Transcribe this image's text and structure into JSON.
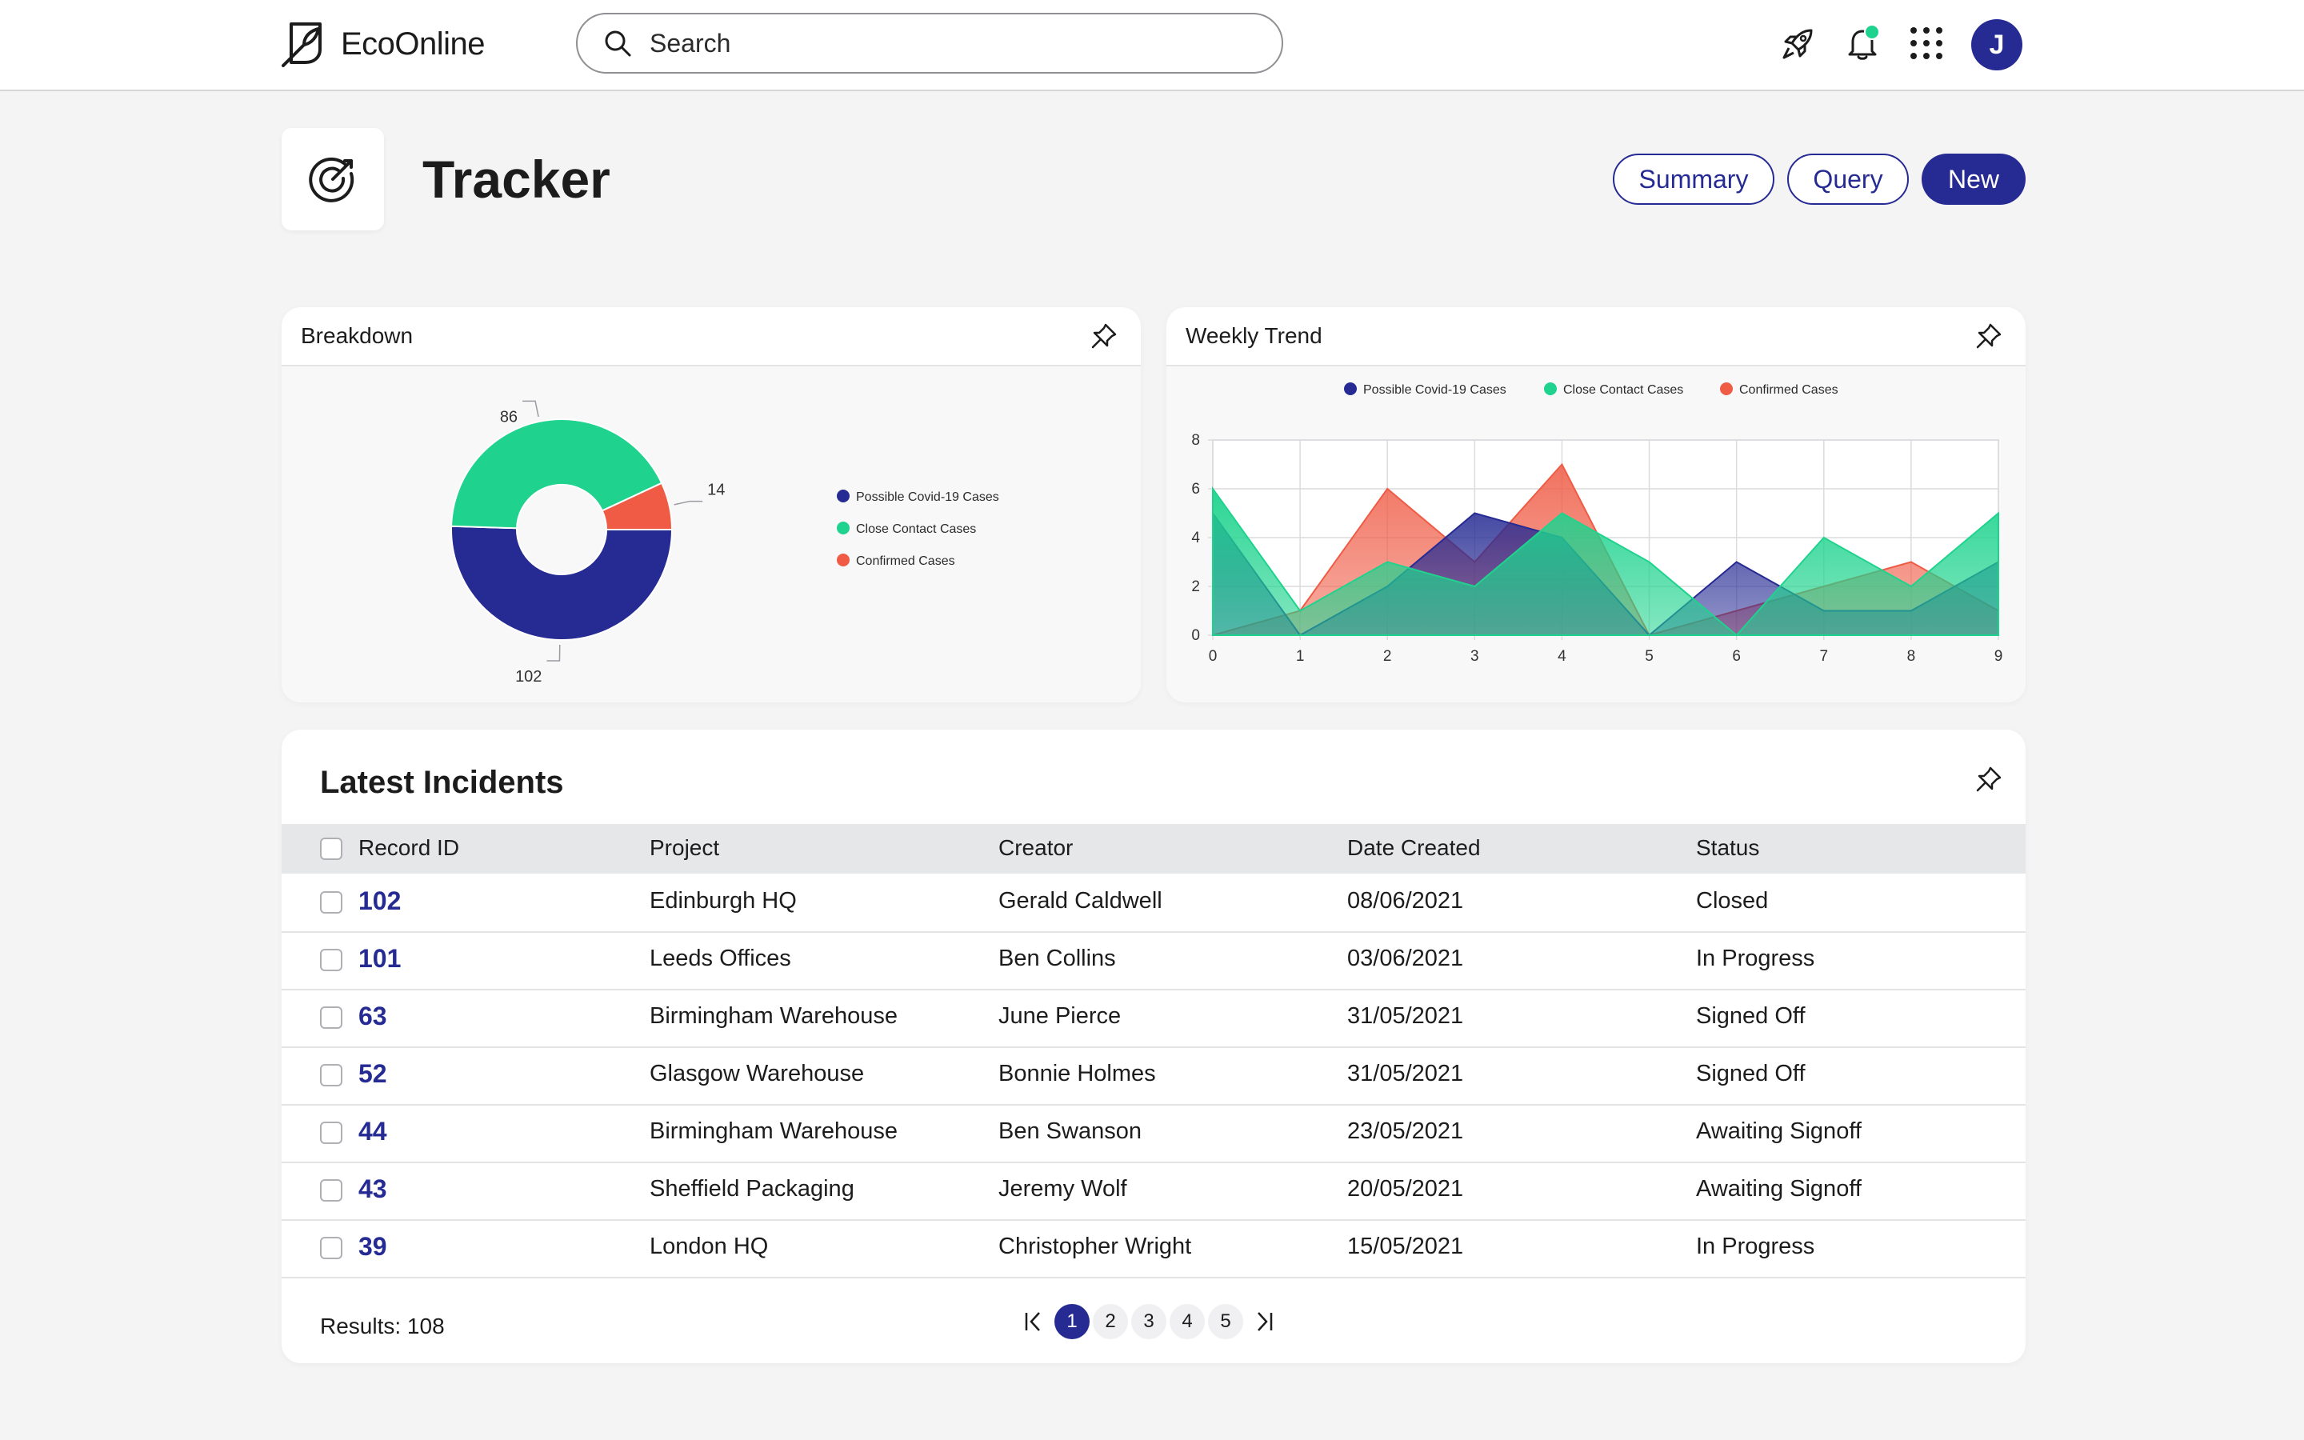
{
  "app": {
    "name": "EcoOnline"
  },
  "search": {
    "placeholder": "Search"
  },
  "header_icons": [
    "rocket-icon",
    "bell-icon",
    "apps-grid-icon"
  ],
  "user": {
    "initial": "J"
  },
  "page": {
    "title": "Tracker",
    "icon": "target-icon"
  },
  "actions": {
    "summary": "Summary",
    "query": "Query",
    "new": "New"
  },
  "colors": {
    "accent": "#262b93",
    "green": "#1fd38e",
    "red": "#ef5b45"
  },
  "breakdown": {
    "title": "Breakdown",
    "chart_data": {
      "type": "pie",
      "variant": "donut",
      "labels": [
        "Possible Covid-19 Cases",
        "Close Contact Cases",
        "Confirmed Cases"
      ],
      "values": [
        102,
        86,
        14
      ],
      "colors": [
        "#262b93",
        "#1fd38e",
        "#ef5b45"
      ],
      "legend": "right"
    }
  },
  "trend": {
    "title": "Weekly Trend",
    "chart_data": {
      "type": "area",
      "x": [
        0,
        1,
        2,
        3,
        4,
        5,
        6,
        7,
        8,
        9
      ],
      "series": [
        {
          "name": "Possible Covid-19 Cases",
          "color": "#262b93",
          "values": [
            5,
            0,
            2,
            5,
            4,
            0,
            3,
            1,
            1,
            3
          ]
        },
        {
          "name": "Close Contact Cases",
          "color": "#1fd38e",
          "values": [
            6,
            1,
            3,
            2,
            5,
            3,
            0,
            4,
            2,
            5
          ]
        },
        {
          "name": "Confirmed Cases",
          "color": "#ef5b45",
          "values": [
            0,
            1,
            6,
            3,
            7,
            0,
            1,
            2,
            3,
            1
          ]
        }
      ],
      "xlim": [
        0,
        9
      ],
      "ylim": [
        0,
        8
      ],
      "yticks": [
        0,
        2,
        4,
        6,
        8
      ],
      "grid": true,
      "legend": "top"
    }
  },
  "incidents": {
    "title": "Latest Incidents",
    "columns": [
      "Record ID",
      "Project",
      "Creator",
      "Date Created",
      "Status"
    ],
    "rows": [
      {
        "id": "102",
        "project": "Edinburgh HQ",
        "creator": "Gerald Caldwell",
        "date": "08/06/2021",
        "status": "Closed"
      },
      {
        "id": "101",
        "project": "Leeds Offices",
        "creator": "Ben Collins",
        "date": "03/06/2021",
        "status": "In Progress"
      },
      {
        "id": "63",
        "project": "Birmingham Warehouse",
        "creator": "June Pierce",
        "date": "31/05/2021",
        "status": "Signed Off"
      },
      {
        "id": "52",
        "project": "Glasgow Warehouse",
        "creator": "Bonnie Holmes",
        "date": "31/05/2021",
        "status": "Signed Off"
      },
      {
        "id": "44",
        "project": "Birmingham Warehouse",
        "creator": "Ben Swanson",
        "date": "23/05/2021",
        "status": "Awaiting Signoff"
      },
      {
        "id": "43",
        "project": "Sheffield Packaging",
        "creator": "Jeremy Wolf",
        "date": "20/05/2021",
        "status": "Awaiting Signoff"
      },
      {
        "id": "39",
        "project": "London HQ",
        "creator": "Christopher Wright",
        "date": "15/05/2021",
        "status": "In Progress"
      }
    ],
    "results_label": "Results: 108",
    "pages": [
      "1",
      "2",
      "3",
      "4",
      "5"
    ],
    "current_page": "1"
  }
}
